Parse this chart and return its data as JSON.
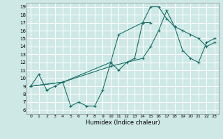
{
  "title": "",
  "xlabel": "Humidex (Indice chaleur)",
  "xlim": [
    -0.5,
    23.5
  ],
  "ylim": [
    5.5,
    19.5
  ],
  "xticks": [
    0,
    1,
    2,
    3,
    4,
    5,
    6,
    7,
    8,
    9,
    10,
    11,
    12,
    13,
    14,
    15,
    16,
    17,
    18,
    19,
    20,
    21,
    22,
    23
  ],
  "yticks": [
    6,
    7,
    8,
    9,
    10,
    11,
    12,
    13,
    14,
    15,
    16,
    17,
    18,
    19
  ],
  "bg_color": "#cde8e5",
  "grid_color": "#ffffff",
  "line_color": "#1a7068",
  "series": [
    {
      "x": [
        0,
        1,
        2,
        3,
        4,
        5,
        6,
        7,
        8,
        9,
        10,
        11,
        12,
        13,
        14,
        15
      ],
      "y": [
        9.0,
        10.5,
        8.5,
        9.0,
        9.5,
        6.5,
        7.0,
        6.5,
        6.5,
        8.5,
        12.0,
        11.0,
        12.0,
        12.5,
        17.0,
        17.0
      ]
    },
    {
      "x": [
        0,
        4,
        10,
        11,
        14,
        15,
        16,
        17,
        18,
        19,
        20,
        21,
        22,
        23
      ],
      "y": [
        9.0,
        9.5,
        12.0,
        15.5,
        17.0,
        19.0,
        19.0,
        17.5,
        16.5,
        16.0,
        15.5,
        15.0,
        14.0,
        14.5
      ]
    },
    {
      "x": [
        0,
        4,
        10,
        14,
        15,
        16,
        17,
        18,
        19,
        20,
        21,
        22,
        23
      ],
      "y": [
        9.0,
        9.5,
        11.5,
        12.5,
        14.0,
        16.0,
        18.5,
        16.5,
        13.5,
        12.5,
        12.0,
        14.5,
        15.0
      ]
    }
  ]
}
